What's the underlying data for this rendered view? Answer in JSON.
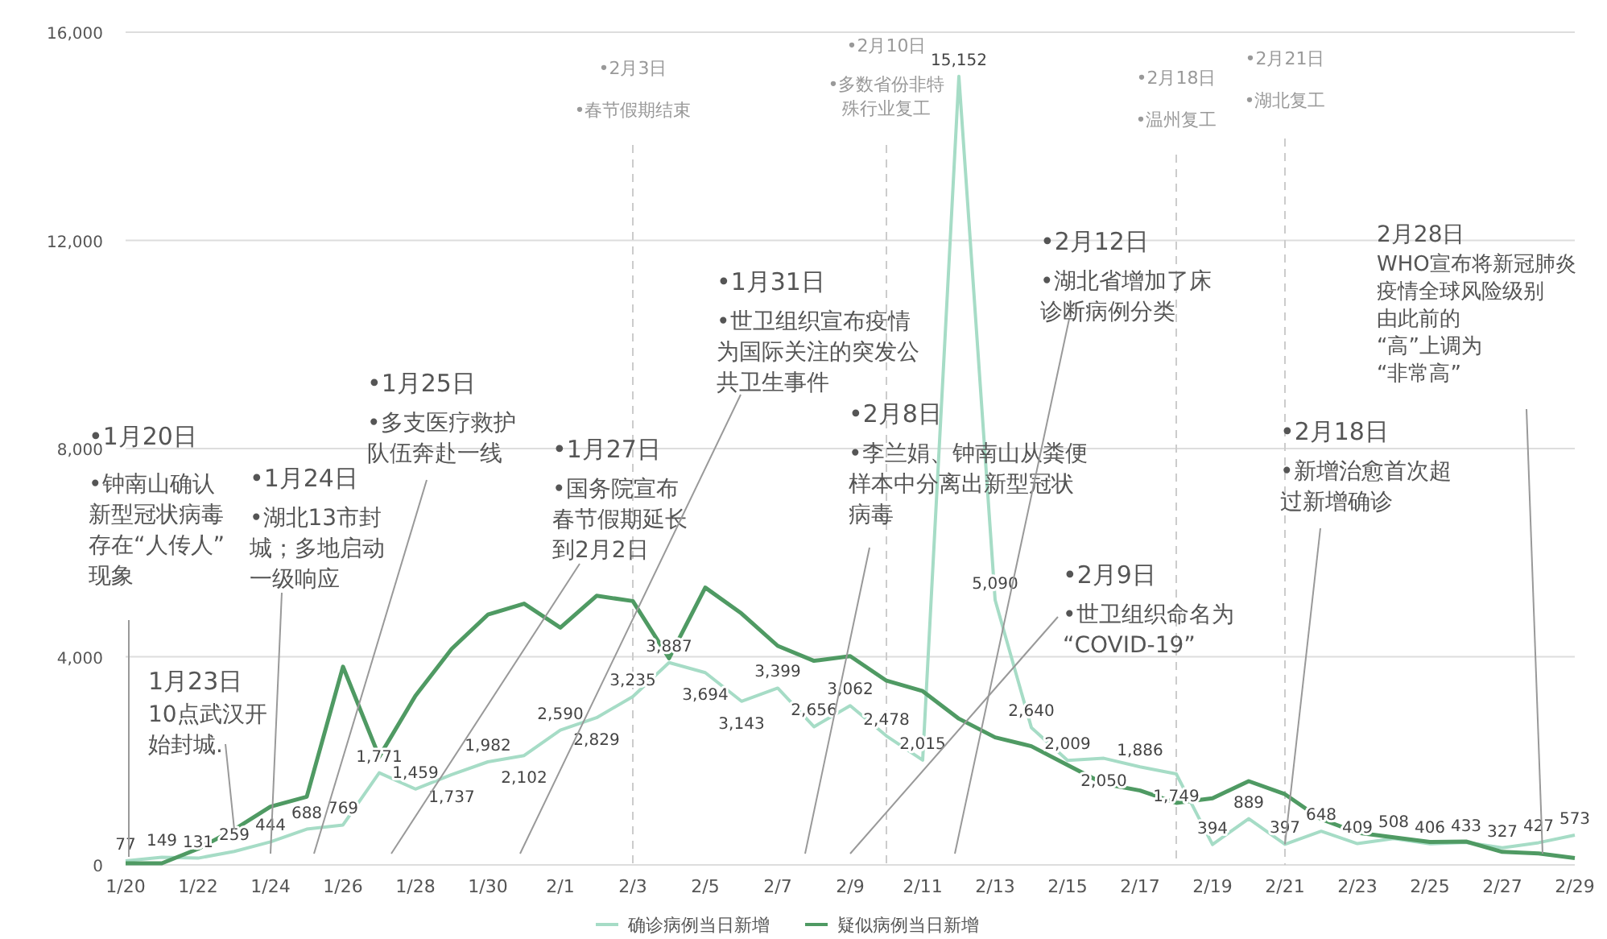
{
  "chart_data": {
    "type": "line",
    "x": [
      "--01-20",
      "--01-21",
      "--01-22",
      "--01-23",
      "--01-24",
      "--01-25",
      "--01-26",
      "--01-27",
      "--01-28",
      "--01-29",
      "--01-30",
      "--01-31",
      "--02-01",
      "--02-02",
      "--02-03",
      "--02-04",
      "--02-05",
      "--02-06",
      "--02-07",
      "--02-08",
      "--02-09",
      "--02-10",
      "--02-11",
      "--02-12",
      "--02-13",
      "--02-14",
      "--02-15",
      "--02-16",
      "--02-17",
      "--02-18",
      "--02-19",
      "--02-20",
      "--02-21",
      "--02-22",
      "--02-23",
      "--02-24",
      "--02-25",
      "--02-26",
      "--02-27",
      "--02-28",
      "--02-29"
    ],
    "series": [
      {
        "name": "确诊病例当日新增",
        "color": "#a6dcc6",
        "values": [
          77,
          149,
          131,
          259,
          444,
          688,
          769,
          1771,
          1459,
          1737,
          1982,
          2102,
          2590,
          2829,
          3235,
          3887,
          3694,
          3143,
          3399,
          2656,
          3062,
          2478,
          2015,
          15152,
          5090,
          2640,
          2009,
          2050,
          1886,
          1749,
          394,
          889,
          397,
          648,
          409,
          508,
          406,
          433,
          327,
          427,
          573
        ],
        "value_labels": [
          "77",
          "149",
          "131",
          "259",
          "444",
          "688",
          "769",
          "1,771",
          "1,459",
          "1,737",
          "1,982",
          "2,102",
          "2,590",
          "2,829",
          "3,235",
          "3,887",
          "3,694",
          "3,143",
          "3,399",
          "2,656",
          "3,062",
          "2,478",
          "2,015",
          "15,152",
          "5,090",
          "2,640",
          "2,009",
          "2,050",
          "1,886",
          "1,749",
          "394",
          "889",
          "397",
          "648",
          "409",
          "508",
          "406",
          "433",
          "327",
          "427",
          "573"
        ]
      },
      {
        "name": "疑似病例当日新增",
        "color": "#4f9a63",
        "values": [
          30,
          30,
          310,
          680,
          1120,
          1310,
          3810,
          2080,
          3250,
          4150,
          4810,
          5020,
          4560,
          5170,
          5070,
          3970,
          5330,
          4830,
          4210,
          3920,
          4010,
          3540,
          3340,
          2810,
          2450,
          2280,
          1920,
          1560,
          1430,
          1190,
          1280,
          1610,
          1360,
          880,
          620,
          530,
          440,
          450,
          250,
          220,
          130
        ]
      }
    ],
    "xlim": [
      "--01-20",
      "--02-29"
    ],
    "xticks": [
      {
        "value": "--01-20",
        "label": "1/20"
      },
      {
        "value": "--01-22",
        "label": "1/22"
      },
      {
        "value": "--01-24",
        "label": "1/24"
      },
      {
        "value": "--01-26",
        "label": "1/26"
      },
      {
        "value": "--01-28",
        "label": "1/28"
      },
      {
        "value": "--01-30",
        "label": "1/30"
      },
      {
        "value": "--02-01",
        "label": "2/1"
      },
      {
        "value": "--02-03",
        "label": "2/3"
      },
      {
        "value": "--02-05",
        "label": "2/5"
      },
      {
        "value": "--02-07",
        "label": "2/7"
      },
      {
        "value": "--02-09",
        "label": "2/9"
      },
      {
        "value": "--02-11",
        "label": "2/11"
      },
      {
        "value": "--02-13",
        "label": "2/13"
      },
      {
        "value": "--02-15",
        "label": "2/15"
      },
      {
        "value": "--02-17",
        "label": "2/17"
      },
      {
        "value": "--02-19",
        "label": "2/19"
      },
      {
        "value": "--02-21",
        "label": "2/21"
      },
      {
        "value": "--02-23",
        "label": "2/23"
      },
      {
        "value": "--02-25",
        "label": "2/25"
      },
      {
        "value": "--02-27",
        "label": "2/27"
      },
      {
        "value": "--02-29",
        "label": "2/29"
      }
    ],
    "ylim": [
      0,
      16000
    ],
    "yticks": [
      0,
      {
        "value": 4000,
        "label": "4,000"
      },
      {
        "value": 8000,
        "label": "8,000"
      },
      {
        "value": 12000,
        "label": "12,000"
      },
      {
        "value": 16000,
        "label": "16,000"
      }
    ],
    "grid": "y",
    "legend": "bottom",
    "marker": "none",
    "line_style": "solid",
    "ref_lines": [
      {
        "axis": "x",
        "value": "--02-03",
        "color": "#cccccc",
        "line_style": "dashed"
      },
      {
        "axis": "x",
        "value": "--02-10",
        "color": "#cccccc",
        "line_style": "dashed"
      },
      {
        "axis": "x",
        "value": "--02-18",
        "color": "#cccccc",
        "line_style": "dashed"
      },
      {
        "axis": "x",
        "value": "--02-21",
        "color": "#cccccc",
        "line_style": "dashed"
      }
    ],
    "annotations": [
      "•1月20日",
      "•钟南山确认新型冠状病毒存在“人传人”现象",
      "1月23日",
      {
        "text": "10点武汉开始封城.",
        "x": "--01-23",
        "y": 680
      },
      "•1月24日",
      "•湖北13市封城；多地启动一级响应",
      "•1月25日",
      "•多支医疗救护队伍奔赴一线",
      "•1月27日",
      "•国务院宣布春节假期延长到2月2日",
      "•1月31日",
      "•世卫组织宣布疫情为国际关注的突发公共卫生事件",
      "•2月8日",
      "•李兰娟、钟南山从粪便样本中分离出新型冠状病毒",
      "•2月9日",
      "•世卫组织命名为“COVID-19”",
      "•2月12日",
      "•湖北省增加了床诊断病例分类",
      "•2月18日",
      {
        "text": "•新增治愈首次超过新增确诊",
        "x": "--02-21",
        "y": 397
      },
      "2月28日",
      "WHO宣布将新冠肺炎疫情全球风险级别由此前的“高”上调为“非常高”",
      "•春节假期结束",
      "•多数省份非特殊行业复工",
      "•温州复工",
      "•湖北复工",
      "•2月3日",
      "•2月10日",
      "•2月18日",
      "•2月21日"
    ]
  }
}
